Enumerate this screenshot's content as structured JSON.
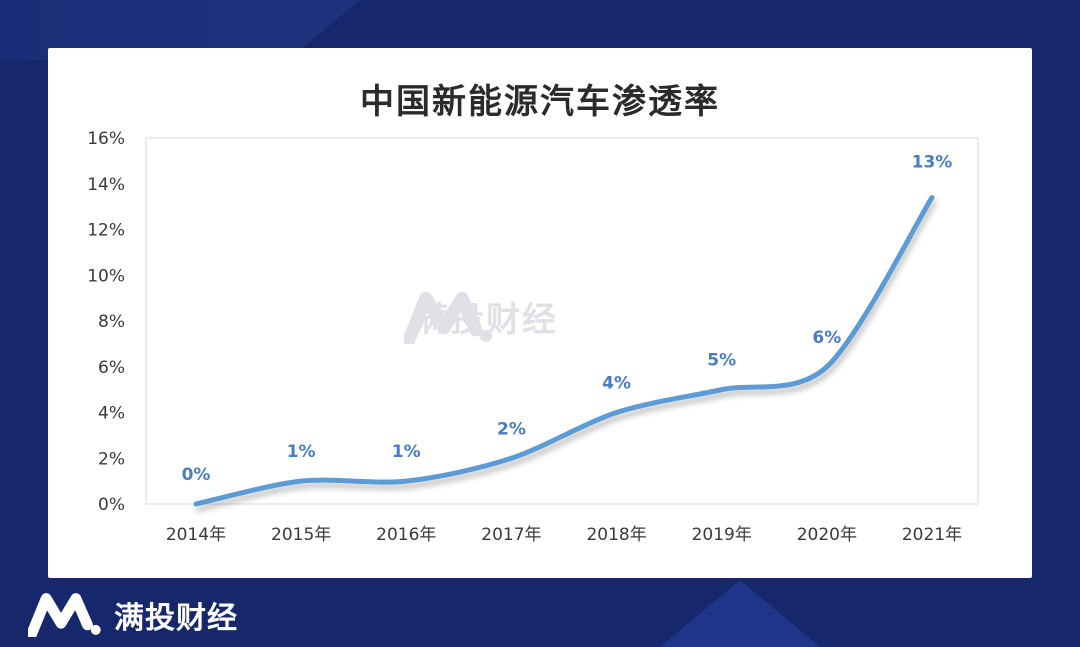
{
  "chart_data": {
    "type": "line",
    "title": "中国新能源汽车渗透率",
    "categories": [
      "2014年",
      "2015年",
      "2016年",
      "2017年",
      "2018年",
      "2019年",
      "2020年",
      "2021年"
    ],
    "series": [
      {
        "name": "",
        "values": [
          0,
          1,
          1,
          2,
          4,
          5,
          6,
          13.4
        ],
        "data_labels": [
          "0%",
          "1%",
          "1%",
          "2%",
          "4%",
          "5%",
          "6%",
          "13%"
        ]
      }
    ],
    "ylim": [
      0,
      16
    ],
    "yticks": [
      "0%",
      "2%",
      "4%",
      "6%",
      "8%",
      "10%",
      "12%",
      "14%",
      "16%"
    ],
    "smooth": true,
    "grid": false,
    "line_color": "#5b9bd5",
    "label_color": "#4a7cc0"
  },
  "watermark": {
    "text": "满投财经",
    "icon": "brand-m-logo-icon"
  },
  "brand": {
    "text": "满投财经",
    "icon": "brand-m-logo-icon"
  },
  "colors": {
    "background": "#16276b",
    "card": "#ffffff"
  }
}
